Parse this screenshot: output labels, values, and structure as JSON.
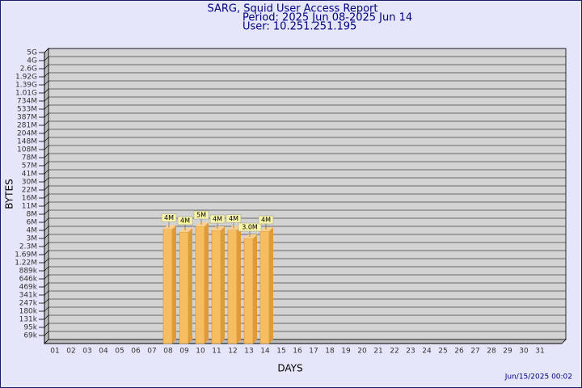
{
  "chart_data": {
    "type": "bar",
    "title": "SARG, Squid User Access Report",
    "subtitle": "Period: 2025 Jun 08-2025 Jun 14",
    "user": "User: 10.251.251.195",
    "x_label": "DAYS",
    "y_label": "BYTES",
    "footer": "Jun/15/2025 00:02",
    "color": "#f7bd62",
    "categories": [
      "01",
      "02",
      "03",
      "04",
      "05",
      "06",
      "07",
      "08",
      "09",
      "10",
      "11",
      "12",
      "13",
      "14",
      "15",
      "16",
      "17",
      "18",
      "19",
      "20",
      "21",
      "22",
      "23",
      "24",
      "25",
      "26",
      "27",
      "28",
      "29",
      "30",
      "31"
    ],
    "values": [
      null,
      null,
      null,
      null,
      null,
      null,
      null,
      4300000,
      3800000,
      5000000,
      4000000,
      4100000,
      3000000,
      3900000,
      null,
      null,
      null,
      null,
      null,
      null,
      null,
      null,
      null,
      null,
      null,
      null,
      null,
      null,
      null,
      null,
      null
    ],
    "value_labels": [
      null,
      null,
      null,
      null,
      null,
      null,
      null,
      "4M",
      "4M",
      "5M",
      "4M",
      "4M",
      "3.0M",
      "4M",
      null,
      null,
      null,
      null,
      null,
      null,
      null,
      null,
      null,
      null,
      null,
      null,
      null,
      null,
      null,
      null,
      null
    ],
    "ylim": [
      0,
      5000000000
    ],
    "yticks": [
      {
        "value": 5000000000,
        "label": "5G"
      },
      {
        "value": 4000000000,
        "label": "4G"
      },
      {
        "value": 2600000000,
        "label": "2.6G"
      },
      {
        "value": 1920000000,
        "label": "1.92G"
      },
      {
        "value": 1390000000,
        "label": "1.39G"
      },
      {
        "value": 1010000000,
        "label": "1.01G"
      },
      {
        "value": 734000000,
        "label": "734M"
      },
      {
        "value": 533000000,
        "label": "533M"
      },
      {
        "value": 387000000,
        "label": "387M"
      },
      {
        "value": 281000000,
        "label": "281M"
      },
      {
        "value": 204000000,
        "label": "204M"
      },
      {
        "value": 148000000,
        "label": "148M"
      },
      {
        "value": 108000000,
        "label": "108M"
      },
      {
        "value": 78000000,
        "label": "78M"
      },
      {
        "value": 57000000,
        "label": "57M"
      },
      {
        "value": 41000000,
        "label": "41M"
      },
      {
        "value": 30000000,
        "label": "30M"
      },
      {
        "value": 22000000,
        "label": "22M"
      },
      {
        "value": 16000000,
        "label": "16M"
      },
      {
        "value": 11000000,
        "label": "11M"
      },
      {
        "value": 8000000,
        "label": "8M"
      },
      {
        "value": 6000000,
        "label": "6M"
      },
      {
        "value": 4000000,
        "label": "4M"
      },
      {
        "value": 3000000,
        "label": "3M"
      },
      {
        "value": 2300000,
        "label": "2.3M"
      },
      {
        "value": 1690000,
        "label": "1.69M"
      },
      {
        "value": 1220000,
        "label": "1.22M"
      },
      {
        "value": 889000,
        "label": "889k"
      },
      {
        "value": 646000,
        "label": "646k"
      },
      {
        "value": 469000,
        "label": "469k"
      },
      {
        "value": 341000,
        "label": "341k"
      },
      {
        "value": 247000,
        "label": "247k"
      },
      {
        "value": 180000,
        "label": "180k"
      },
      {
        "value": 131000,
        "label": "131k"
      },
      {
        "value": 95000,
        "label": "95k"
      },
      {
        "value": 69000,
        "label": "69k"
      }
    ],
    "grid": true
  }
}
